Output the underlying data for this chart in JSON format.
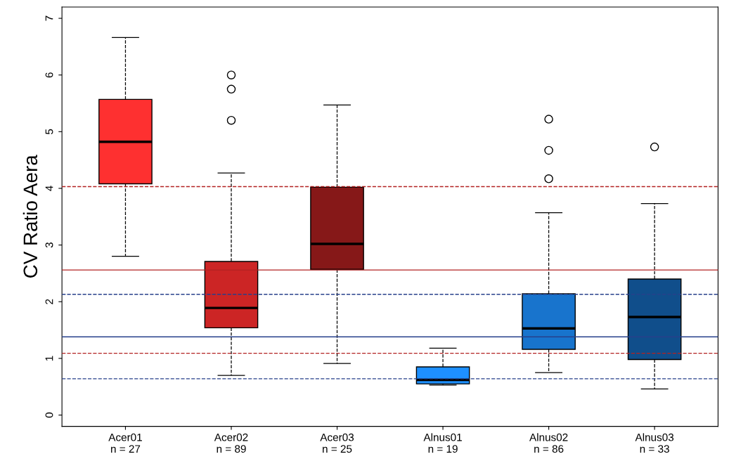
{
  "chart_data": {
    "type": "box",
    "ylabel": "CV Ratio Aera",
    "categories": [
      "Acer01\nn = 27",
      "Acer02\nn = 89",
      "Acer03\nn = 25",
      "Alnus01\nn = 19",
      "Alnus02\nn = 86",
      "Alnus03\nn = 33"
    ],
    "colors": [
      "#fe3030",
      "#cc2525",
      "#861818",
      "#1e90ff",
      "#1874cd",
      "#104e8b"
    ],
    "boxes": [
      {
        "low": 2.8,
        "q1": 4.08,
        "median": 4.82,
        "q3": 5.57,
        "high": 6.66
      },
      {
        "low": 0.7,
        "q1": 1.54,
        "median": 1.89,
        "q3": 2.71,
        "high": 4.27,
        "outliers": [
          6.0,
          5.75,
          5.2
        ]
      },
      {
        "low": 0.91,
        "q1": 2.57,
        "median": 3.02,
        "q3": 4.02,
        "high": 5.47
      },
      {
        "low": 0.53,
        "q1": 0.55,
        "median": 0.62,
        "q3": 0.85,
        "high": 1.18
      },
      {
        "low": 0.75,
        "q1": 1.16,
        "median": 1.53,
        "q3": 2.14,
        "high": 3.57,
        "outliers": [
          5.22,
          4.67,
          4.17
        ]
      },
      {
        "low": 0.46,
        "q1": 0.98,
        "median": 1.73,
        "q3": 2.4,
        "high": 3.73,
        "outliers": [
          4.73
        ]
      }
    ],
    "ref_lines": [
      {
        "axis": "y",
        "value": 2.56,
        "color": "#b22222",
        "line_style": "solid"
      },
      {
        "axis": "y",
        "value": 4.03,
        "color": "#b22222",
        "line_style": "dashed"
      },
      {
        "axis": "y",
        "value": 1.09,
        "color": "#b22222",
        "line_style": "dashed"
      },
      {
        "axis": "y",
        "value": 1.38,
        "color": "#27408b",
        "line_style": "solid"
      },
      {
        "axis": "y",
        "value": 2.13,
        "color": "#27408b",
        "line_style": "dashed"
      },
      {
        "axis": "y",
        "value": 0.64,
        "color": "#27408b",
        "line_style": "dashed"
      }
    ],
    "ylim": [
      -0.2,
      7.2
    ],
    "yticks": [
      0,
      1,
      2,
      3,
      4,
      5,
      6,
      7
    ],
    "grid": false,
    "legend": false
  }
}
